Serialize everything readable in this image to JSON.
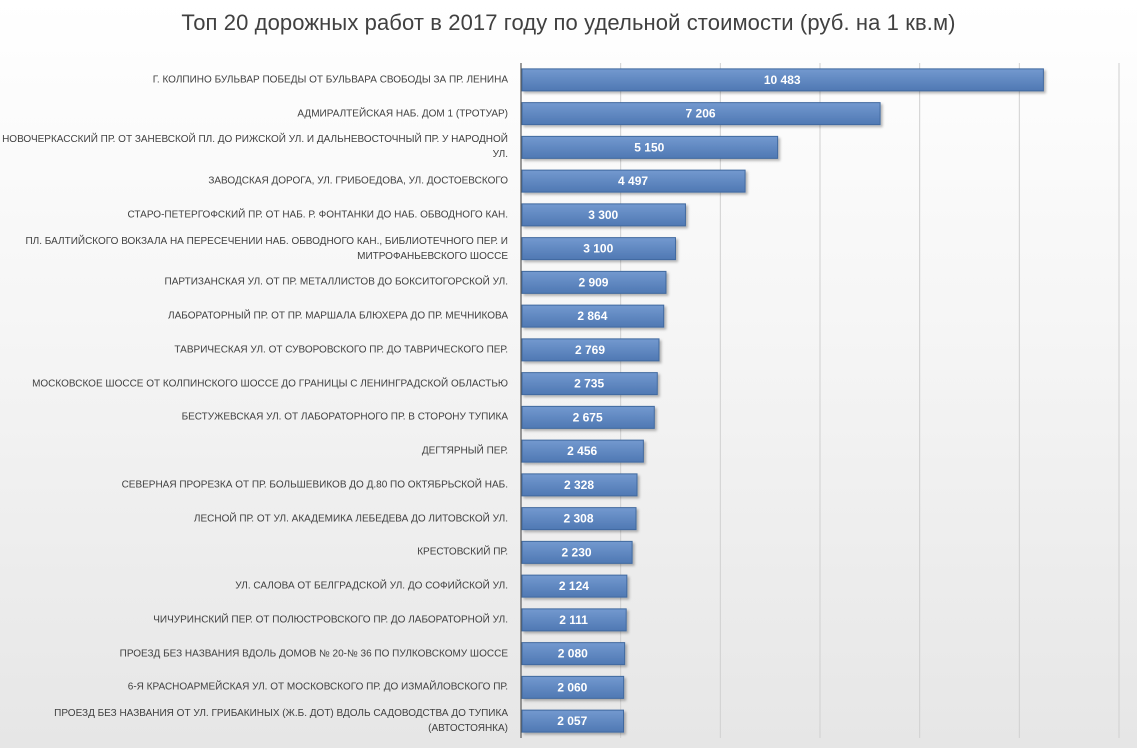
{
  "colors": {
    "bar_fill": "#5b84bf",
    "bar_fill_top": "#6e94cb",
    "bar_stroke": "#41699f",
    "bar_label": "#ffffff",
    "grid": "#d0d0d0",
    "axis": "#595959",
    "text": "#404040"
  },
  "chart_data": {
    "type": "bar",
    "orientation": "horizontal",
    "title": "Топ 20 дорожных работ в 2017 году по удельной стоимости (руб. на 1 кв.м)",
    "categories": [
      "г. Колпино  бульвар Победы от  бульвара Свободы за пр. Ленина",
      "Адмиралтейская наб. дом 1 (тротуар)",
      "Новочеркасский пр. от Заневской пл. до Рижской ул. и Дальневосточный пр. у Народной ул.",
      "Заводская дорога, ул. Грибоедова, ул. Достоевского",
      "Старо-Петергофский пр. от наб. р. Фонтанки до наб. Обводного кан.",
      "пл. Балтийского вокзала на пересечении наб. Обводного кан., Библиотечного пер. и Митрофаньевского шоссе",
      "Партизанская ул. от пр. Металлистов до Бокситогорской ул.",
      "Лабораторный пр. от пр. Маршала Блюхера до пр. Мечникова",
      "Таврическая ул. от Суворовского пр. до Таврического пер.",
      "Московское шоссе от Колпинского шоссе до границы с Ленинградской областью",
      "Бестужевская ул. от Лабораторного пр. в сторону тупика",
      "Дегтярный пер.",
      "Северная прорезка от пр. Большевиков до д.80 по Октябрьской наб.",
      "Лесной пр. от ул. Академика Лебедева до Литовской ул.",
      "Крестовский пр.",
      "ул. Салова от Белградской ул. до Софийской ул.",
      "Чичуринский пер. от Полюстровского пр. до Лабораторной ул.",
      "Проезд без названия вдоль домов № 20-№ 36 по Пулковскому шоссе",
      "6-я Красноармейская ул. от Московского пр. до Измайловского пр.",
      "Проезд без названия от ул. Грибакиных (ж.б. ДОТ) вдоль садоводства до тупика (автостоянка)"
    ],
    "values": [
      10483,
      7206,
      5150,
      4497,
      3300,
      3100,
      2909,
      2864,
      2769,
      2735,
      2675,
      2456,
      2328,
      2308,
      2230,
      2124,
      2111,
      2080,
      2060,
      2057
    ],
    "value_labels": [
      "10 483",
      "7 206",
      "5 150",
      "4 497",
      "3 300",
      "3 100",
      "2 909",
      "2 864",
      "2 769",
      "2 735",
      "2 675",
      "2 456",
      "2 328",
      "2 308",
      "2 230",
      "2 124",
      "2 111",
      "2 080",
      "2 060",
      "2 057"
    ],
    "xlim": [
      0,
      12000
    ],
    "x_grid_step": 2000,
    "grid": true,
    "x_tick_labels_shown": false,
    "legend": "none"
  }
}
